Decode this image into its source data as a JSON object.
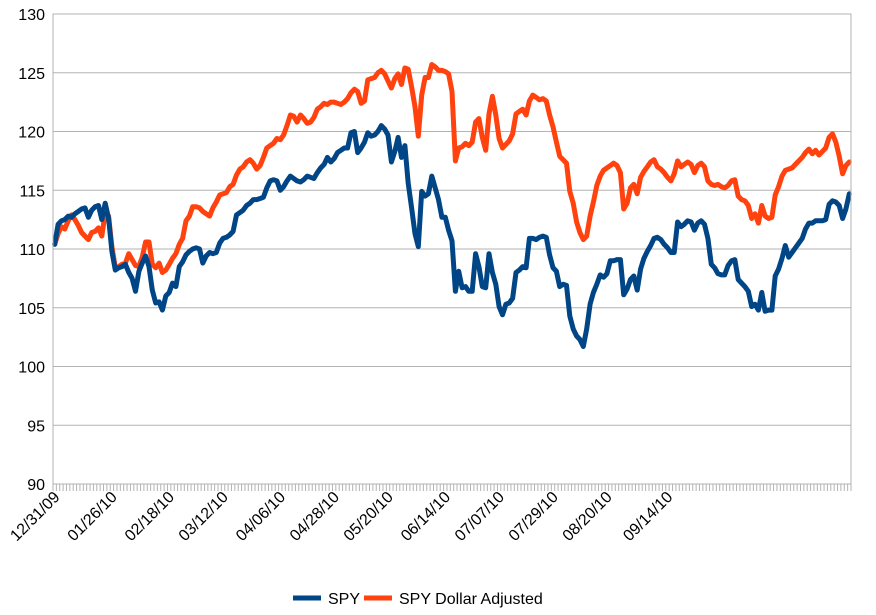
{
  "chart_data": {
    "type": "line",
    "title": "",
    "xlabel": "",
    "ylabel": "",
    "ylim": [
      90,
      130
    ],
    "ytick_step": 5,
    "y_ticks": [
      "90",
      "95",
      "100",
      "105",
      "110",
      "115",
      "120",
      "125",
      "130"
    ],
    "grid": "horizontal",
    "legend_position": "bottom",
    "x_tick_labels": [
      "12/31/09",
      "01/26/10",
      "02/18/10",
      "03/12/10",
      "04/06/10",
      "04/28/10",
      "05/20/10",
      "06/14/10",
      "07/07/10",
      "07/29/10",
      "08/20/10",
      "09/14/10"
    ],
    "x_tick_label_index": [
      0,
      17,
      34,
      50,
      67,
      83,
      99,
      116,
      132,
      148,
      164,
      182
    ],
    "series": [
      {
        "name": "SPY",
        "color": "#004586",
        "values": [
          110.4,
          112.1,
          112.4,
          112.5,
          112.8,
          112.7,
          113,
          113.2,
          113.4,
          113.5,
          112.7,
          113.3,
          113.6,
          113.7,
          112.5,
          113.9,
          112.6,
          109.8,
          108.2,
          108.4,
          108.5,
          108.7,
          108,
          107.5,
          106.4,
          108.1,
          108.8,
          109.4,
          108.5,
          106.5,
          105.4,
          105.5,
          104.8,
          106,
          106.3,
          107.1,
          106.8,
          108.5,
          108.9,
          109.5,
          109.8,
          110,
          110.1,
          110,
          108.8,
          109.4,
          109.7,
          109.6,
          109.7,
          110.5,
          110.9,
          111,
          111.2,
          111.5,
          112.9,
          113.1,
          113.3,
          113.7,
          113.9,
          114.2,
          114.2,
          114.3,
          114.4,
          115.2,
          115.8,
          115.9,
          115.8,
          115,
          115.3,
          115.8,
          116.2,
          116,
          115.8,
          115.7,
          115.9,
          116.2,
          116.1,
          116,
          116.5,
          116.9,
          117.2,
          117.8,
          117.4,
          117.7,
          118.2,
          118.4,
          118.6,
          118.6,
          119.9,
          120,
          118.2,
          118.6,
          119.1,
          119.9,
          119.6,
          119.7,
          120,
          120.5,
          120.2,
          119.7,
          117.4,
          118.3,
          119.5,
          117.8,
          118.8,
          115.6,
          113.5,
          111.3,
          110.2,
          114.9,
          114.5,
          114.7,
          116.2,
          115.2,
          114.2,
          112.7,
          112.7,
          111.6,
          110.7,
          106.4,
          108.1,
          106.7,
          106.8,
          106.4,
          106.4,
          109.6,
          108.5,
          106.8,
          106.7,
          109.6,
          108,
          107,
          105.1,
          104.4,
          105.3,
          105.4,
          105.8,
          108,
          108.2,
          108.5,
          108.4,
          110.9,
          110.9,
          110.8,
          111,
          111.1,
          111,
          109.5,
          108.4,
          108.1,
          106.8,
          107,
          106.9,
          104.3,
          103.2,
          102.6,
          102.3,
          101.7,
          103.2,
          105.3,
          106.3,
          107,
          107.8,
          107.6,
          107.9,
          109,
          109,
          109.1,
          109.1,
          106.1,
          106.6,
          107.4,
          107.7,
          106.5,
          108.3,
          109.2,
          109.8,
          110.3,
          110.9,
          111,
          110.8,
          110.4,
          110.1,
          109.7,
          109.7,
          112.3,
          111.9,
          112.1,
          112.4,
          112.3,
          111.6,
          112.2,
          112.4,
          112.1,
          110.9,
          108.7,
          108.4,
          107.9,
          107.8,
          107.8,
          108.6,
          109,
          109.1,
          107.4,
          107.1,
          106.8,
          106.4,
          105.1,
          105.3,
          104.8,
          106.3,
          104.7,
          104.8,
          104.8,
          107.7,
          108.3,
          109.2,
          110.3,
          109.3,
          109.7,
          110.1,
          110.5,
          110.9,
          111.7,
          112.2,
          112.2,
          112.4,
          112.4,
          112.4,
          112.5,
          113.8,
          114.1,
          114,
          113.7,
          112.6,
          113.4,
          114.7
        ]
      },
      {
        "name": "SPY Dollar Adjusted",
        "color": "#ff420e",
        "values": [
          110.4,
          111.3,
          111.9,
          111.7,
          112.4,
          112.9,
          112.5,
          112,
          111.4,
          111.1,
          110.8,
          111.4,
          111.5,
          111.8,
          111.1,
          113.1,
          112.8,
          110.2,
          108.4,
          108.5,
          108.7,
          108.8,
          109.6,
          109.1,
          108.6,
          108.5,
          109.3,
          110.6,
          110.6,
          108.7,
          108.4,
          108.8,
          108,
          108.2,
          108.7,
          109.2,
          109.6,
          110.4,
          110.9,
          112.4,
          112.8,
          113.6,
          113.6,
          113.5,
          113.2,
          113,
          112.8,
          113.5,
          114,
          114.6,
          114.7,
          114.8,
          115.3,
          115.5,
          116.3,
          116.8,
          117,
          117.4,
          117.6,
          117.3,
          116.8,
          117.1,
          117.8,
          118.6,
          118.8,
          119,
          119.4,
          119.3,
          119.7,
          120.5,
          121.4,
          121.3,
          120.8,
          121.4,
          121.1,
          120.7,
          120.8,
          121.2,
          121.9,
          122.1,
          122.4,
          122.3,
          122.5,
          122.5,
          122.4,
          122.3,
          122.5,
          122.8,
          123.3,
          123.6,
          123.4,
          122.4,
          122.6,
          124.4,
          124.5,
          124.6,
          125,
          125.2,
          124.9,
          124.3,
          123.7,
          124.5,
          124.9,
          124,
          125.4,
          125.3,
          123.8,
          122.1,
          119.6,
          123.1,
          124.6,
          124.6,
          125.7,
          125.5,
          125.2,
          125.2,
          125.1,
          124.9,
          123.4,
          117.5,
          118.6,
          118.7,
          119,
          118.8,
          119.1,
          120.8,
          121.1,
          119.5,
          118.4,
          121.5,
          123,
          121.4,
          119.4,
          118.6,
          118.9,
          119.2,
          119.8,
          121.5,
          121.7,
          121.9,
          121.4,
          122.6,
          123.1,
          122.9,
          122.7,
          122.8,
          122.6,
          121.4,
          120.4,
          119.1,
          117.9,
          117.6,
          117.3,
          114.9,
          113.9,
          112.3,
          111.4,
          110.8,
          111.1,
          112.8,
          114,
          115.4,
          116.2,
          116.7,
          116.9,
          117.1,
          117.3,
          117.1,
          116.5,
          113.4,
          113.9,
          115.2,
          115.5,
          114.7,
          116.1,
          116.6,
          117,
          117.4,
          117.6,
          117,
          116.8,
          116.5,
          116.1,
          115.8,
          116.4,
          117.5,
          117,
          117.2,
          117.4,
          117.2,
          116.5,
          117.1,
          117.3,
          117,
          115.8,
          115.5,
          115.4,
          115.5,
          115.3,
          115.2,
          115.4,
          115.8,
          115.9,
          114.5,
          114.2,
          114.1,
          113.7,
          112.6,
          113,
          112.2,
          113.7,
          112.8,
          112.6,
          112.7,
          114.6,
          115.3,
          116.2,
          116.7,
          116.8,
          116.9,
          117.2,
          117.5,
          117.8,
          118.2,
          118.5,
          118.1,
          118.4,
          118,
          118.3,
          118.6,
          119.5,
          119.8,
          119.1,
          117.9,
          116.4,
          117.1,
          117.4
        ]
      }
    ]
  }
}
